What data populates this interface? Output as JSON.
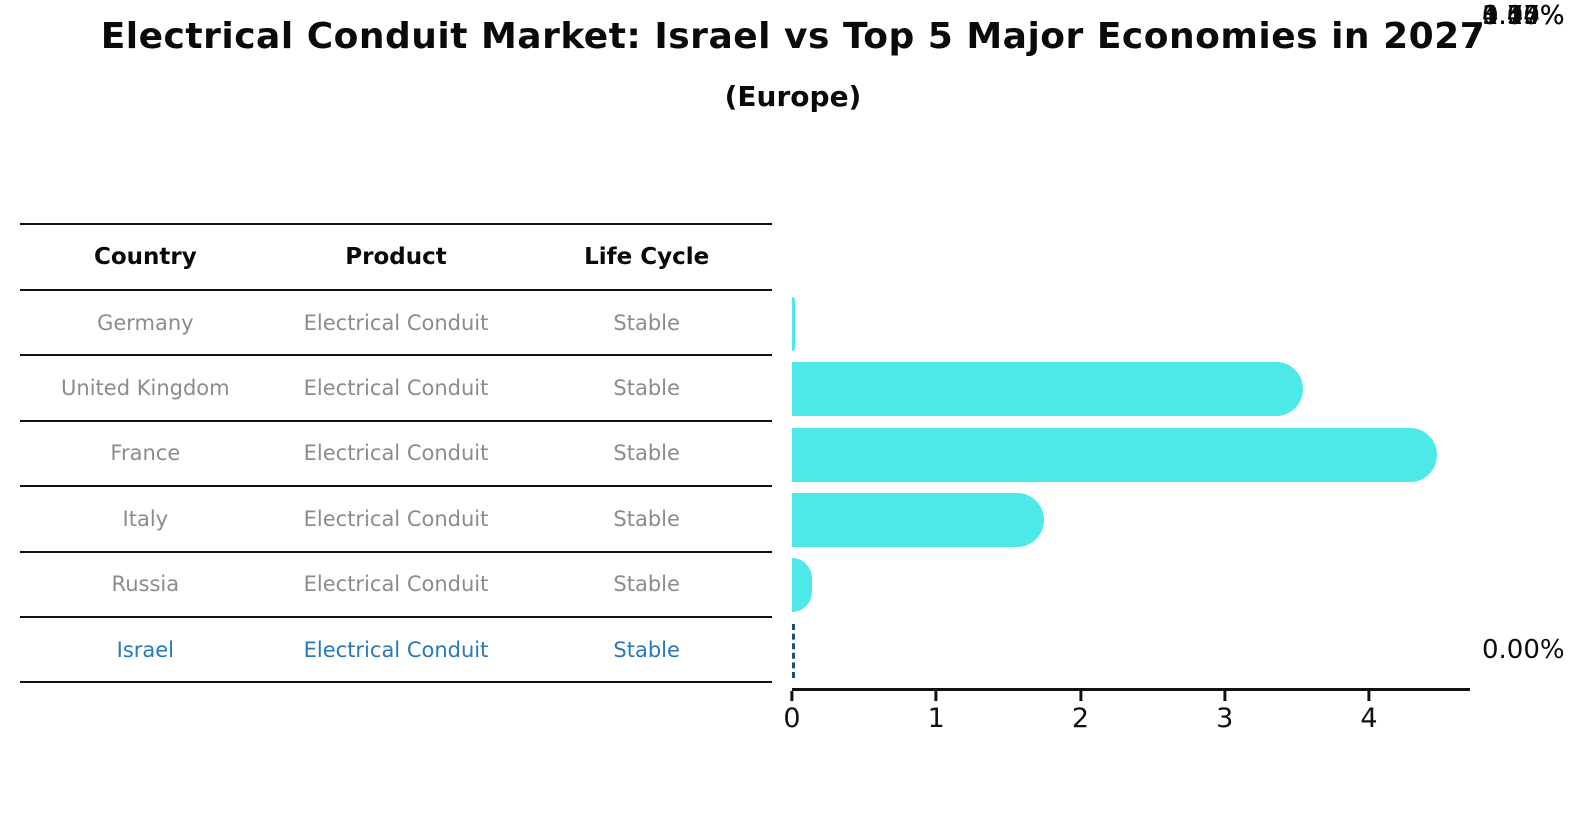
{
  "title": "Electrical Conduit Market: Israel vs Top 5 Major Economies in 2027",
  "subtitle": "(Europe)",
  "table": {
    "headers": [
      "Country",
      "Product",
      "Life Cycle"
    ],
    "rows": [
      {
        "country": "Germany",
        "product": "Electrical Conduit",
        "life_cycle": "Stable",
        "highlight": false
      },
      {
        "country": "United Kingdom",
        "product": "Electrical Conduit",
        "life_cycle": "Stable",
        "highlight": false
      },
      {
        "country": "France",
        "product": "Electrical Conduit",
        "life_cycle": "Stable",
        "highlight": false
      },
      {
        "country": "Italy",
        "product": "Electrical Conduit",
        "life_cycle": "Stable",
        "highlight": false
      },
      {
        "country": "Russia",
        "product": "Electrical Conduit",
        "life_cycle": "Stable",
        "highlight": false
      },
      {
        "country": "Israel",
        "product": "Electrical Conduit",
        "life_cycle": "Stable",
        "highlight": true
      }
    ]
  },
  "chart_data": {
    "type": "bar",
    "orientation": "horizontal",
    "categories": [
      "Germany",
      "United Kingdom",
      "France",
      "Italy",
      "Russia",
      "Israel"
    ],
    "values": [
      0.0,
      3.54,
      4.47,
      1.75,
      0.14,
      0.0
    ],
    "labels": [
      "0.00%",
      "3.54%",
      "4.47%",
      "1.75%",
      "0.14%",
      "0.00%"
    ],
    "xticks": [
      0,
      1,
      2,
      3,
      4
    ],
    "xlim": [
      0,
      4.7
    ],
    "xlabel": "",
    "ylabel": "",
    "grid": false,
    "legend": false,
    "bar_color": "#4DE8E8",
    "highlight_text_color": "#2878BD",
    "highlight_index": 5,
    "zero_marker_style": "dashed-dark-blue-line"
  }
}
